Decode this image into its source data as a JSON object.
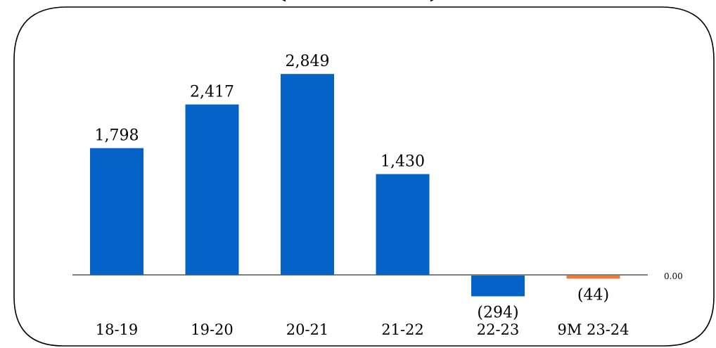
{
  "chart_data": {
    "type": "bar",
    "title": "(… … … …)",
    "categories": [
      "18-19",
      "19-20",
      "20-21",
      "21-22",
      "22-23",
      "9M 23-24"
    ],
    "values": [
      1798,
      2417,
      2849,
      1430,
      -294,
      -44
    ],
    "data_labels": [
      "1,798",
      "2,417",
      "2,849",
      "1,430",
      "(294)",
      "(44)"
    ],
    "bar_colors": [
      "#0563C8",
      "#0563C8",
      "#0563C8",
      "#0563C8",
      "#0563C8",
      "#ED7D31"
    ],
    "zero_label": "0.00",
    "xlabel": "",
    "ylabel": "",
    "ylim": [
      -400,
      3100
    ],
    "grid": false,
    "legend": "none"
  }
}
